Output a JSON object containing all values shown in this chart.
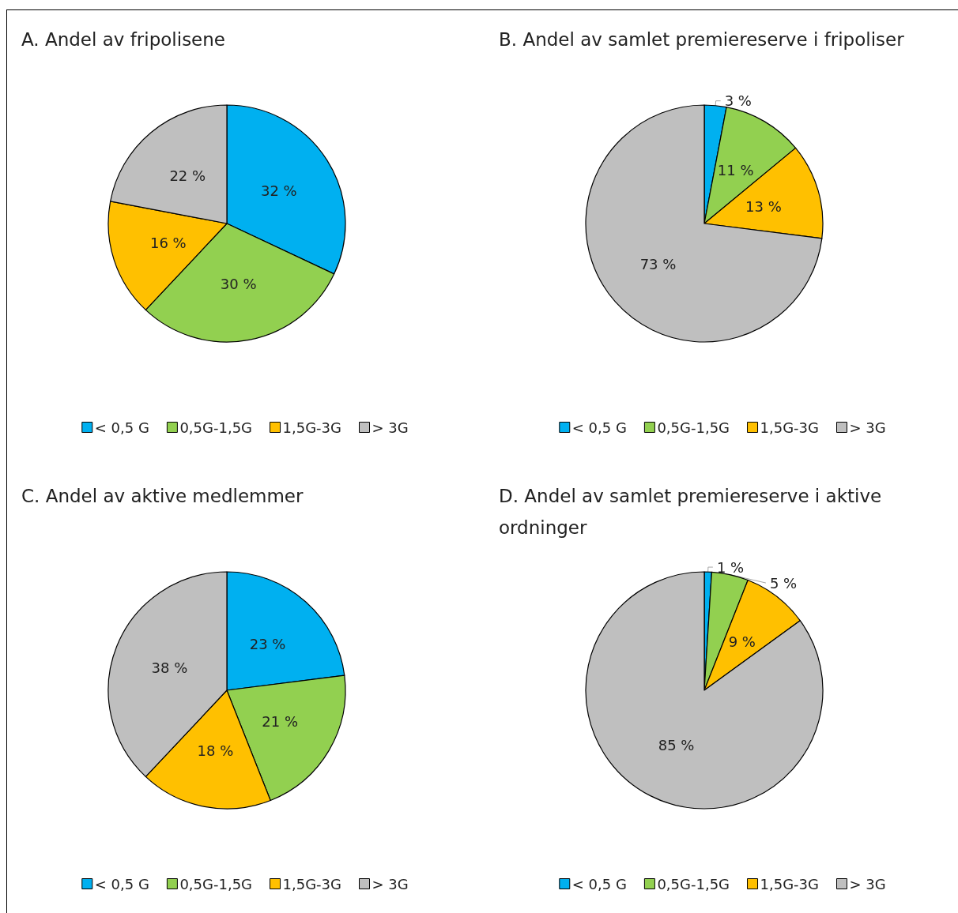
{
  "chart_data": [
    {
      "type": "pie",
      "title": "A. Andel av fripolisene",
      "categories": [
        "< 0,5 G",
        "0,5G-1,5G",
        "1,5G-3G",
        "> 3G"
      ],
      "values": [
        32,
        30,
        16,
        22
      ],
      "value_labels": [
        "32 %",
        "30 %",
        "16 %",
        "22 %"
      ],
      "colors": [
        "#00b0f0",
        "#92d050",
        "#ffc000",
        "#bfbfbf"
      ],
      "legend": "bottom"
    },
    {
      "type": "pie",
      "title": "B. Andel av samlet premiereserve i fripoliser",
      "categories": [
        "< 0,5 G",
        "0,5G-1,5G",
        "1,5G-3G",
        "> 3G"
      ],
      "values": [
        3,
        11,
        13,
        73
      ],
      "value_labels": [
        "3 %",
        "11 %",
        "13 %",
        "73 %"
      ],
      "colors": [
        "#00b0f0",
        "#92d050",
        "#ffc000",
        "#bfbfbf"
      ],
      "legend": "bottom"
    },
    {
      "type": "pie",
      "title": "C. Andel av aktive medlemmer",
      "categories": [
        "< 0,5 G",
        "0,5G-1,5G",
        "1,5G-3G",
        "> 3G"
      ],
      "values": [
        23,
        21,
        18,
        38
      ],
      "value_labels": [
        "23 %",
        "21 %",
        "18 %",
        "38 %"
      ],
      "colors": [
        "#00b0f0",
        "#92d050",
        "#ffc000",
        "#bfbfbf"
      ],
      "legend": "bottom"
    },
    {
      "type": "pie",
      "title": "D. Andel av samlet premiereserve i aktive ordninger",
      "categories": [
        "< 0,5 G",
        "0,5G-1,5G",
        "1,5G-3G",
        "> 3G"
      ],
      "values": [
        1,
        5,
        9,
        85
      ],
      "value_labels": [
        "1 %",
        "5 %",
        "9 %",
        "85 %"
      ],
      "colors": [
        "#00b0f0",
        "#92d050",
        "#ffc000",
        "#bfbfbf"
      ],
      "legend": "bottom"
    }
  ]
}
